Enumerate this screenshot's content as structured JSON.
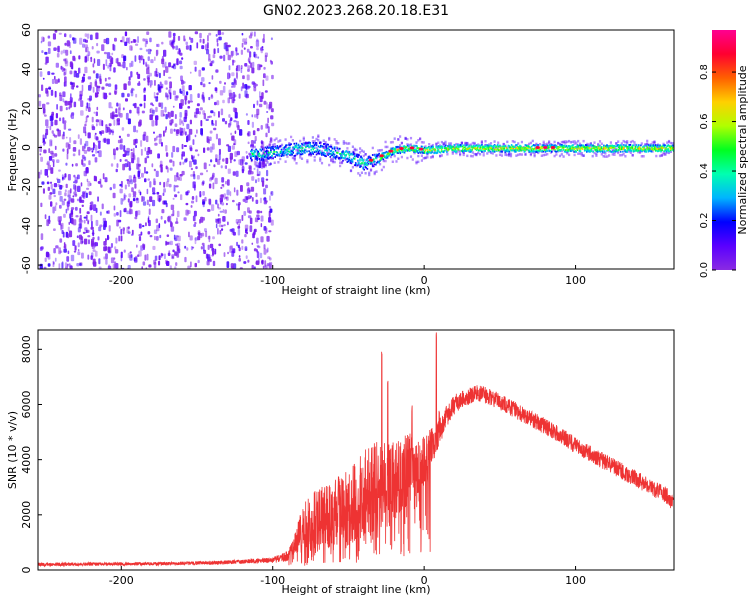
{
  "page_title": "GN02.2023.268.20.18.E31",
  "chart_data": [
    {
      "type": "heatmap",
      "title": "GN02.2023.268.20.18.E31",
      "xlabel": "Height of straight line (km)",
      "ylabel": "Frequency (Hz)",
      "xlim": [
        -255,
        165
      ],
      "ylim": [
        -62,
        60
      ],
      "xticks": [
        -200,
        -100,
        0,
        100
      ],
      "xtick_labels": [
        "-200",
        "-100",
        "0",
        "100"
      ],
      "yticks": [
        -60,
        -40,
        -20,
        0,
        20,
        40,
        60
      ],
      "ytick_labels": [
        "-60",
        "-40",
        "-20",
        "0",
        "20",
        "40",
        "60"
      ],
      "colorbar": {
        "label": "Normalized spectral amplitude",
        "range": [
          0,
          0.97
        ],
        "ticks": [
          0.0,
          0.2,
          0.4,
          0.6,
          0.8
        ],
        "tick_labels": [
          "0.0",
          "0.2",
          "0.4",
          "0.6",
          "0.8"
        ],
        "colormap": "gist_rainbow (violet-blue-cyan-green-yellow-red-magenta)"
      },
      "regions": [
        {
          "description": "broadband noise",
          "x_range": [
            -255,
            -105
          ],
          "y_range": [
            -60,
            60
          ],
          "amplitude": [
            0.02,
            0.15
          ]
        },
        {
          "description": "narrowband signal track",
          "x_range": [
            -115,
            165
          ],
          "y_range": [
            -8,
            3
          ],
          "amplitude": [
            0.2,
            0.95
          ]
        }
      ],
      "signal_center_track": {
        "x": [
          -110,
          -100,
          -90,
          -80,
          -70,
          -60,
          -50,
          -40,
          -30,
          -20,
          -10,
          0,
          20,
          60,
          100,
          165
        ],
        "y": [
          -3,
          -2,
          -1,
          0,
          0,
          -2,
          -4,
          -8,
          -5,
          -1,
          0,
          -1,
          0,
          0,
          0,
          0
        ]
      },
      "grid": false
    },
    {
      "type": "line",
      "xlabel": "Height of straight line (km)",
      "ylabel": "SNR (10 * v/v)",
      "xlim": [
        -255,
        165
      ],
      "ylim": [
        0,
        8700
      ],
      "xticks": [
        -200,
        -100,
        0,
        100
      ],
      "xtick_labels": [
        "-200",
        "-100",
        "0",
        "100"
      ],
      "yticks": [
        0,
        2000,
        4000,
        6000,
        8000
      ],
      "ytick_labels": [
        "0",
        "2000",
        "4000",
        "6000",
        "8000"
      ],
      "color": "#ee3333",
      "grid": false,
      "series": [
        {
          "x": [
            -255,
            -230,
            -200,
            -170,
            -140,
            -120,
            -100,
            -90,
            -85,
            -80,
            -70,
            -60,
            -50,
            -45,
            -40,
            -35,
            -30,
            -25,
            -20,
            -15,
            -10,
            -5,
            0,
            5,
            10,
            15,
            20,
            25,
            30,
            35,
            40,
            50,
            60,
            70,
            80,
            90,
            100,
            110,
            120,
            130,
            140,
            150,
            160,
            165
          ],
          "y": [
            200,
            210,
            220,
            230,
            260,
            300,
            350,
            500,
            900,
            1500,
            1800,
            2000,
            2200,
            2500,
            2700,
            3000,
            3300,
            3000,
            3200,
            3400,
            3600,
            3400,
            4000,
            4500,
            5000,
            5600,
            6000,
            6200,
            6300,
            6400,
            6350,
            6100,
            5800,
            5500,
            5200,
            4900,
            4500,
            4200,
            3900,
            3600,
            3300,
            3000,
            2700,
            2400
          ],
          "noise_amplitude": [
            60,
            60,
            60,
            60,
            70,
            80,
            100,
            200,
            500,
            900,
            1200,
            1300,
            1400,
            1500,
            1600,
            1700,
            1800,
            1500,
            1500,
            1500,
            1400,
            1200,
            900,
            700,
            500,
            400,
            350,
            320,
            300,
            300,
            300,
            300,
            300,
            300,
            300,
            300,
            300,
            300,
            300,
            300,
            300,
            300,
            300,
            300
          ],
          "spikes": [
            [
              -28,
              8000
            ],
            [
              -24,
              7000
            ],
            [
              -8,
              6000
            ],
            [
              8,
              8650
            ],
            [
              10,
              5800
            ]
          ]
        }
      ]
    }
  ]
}
